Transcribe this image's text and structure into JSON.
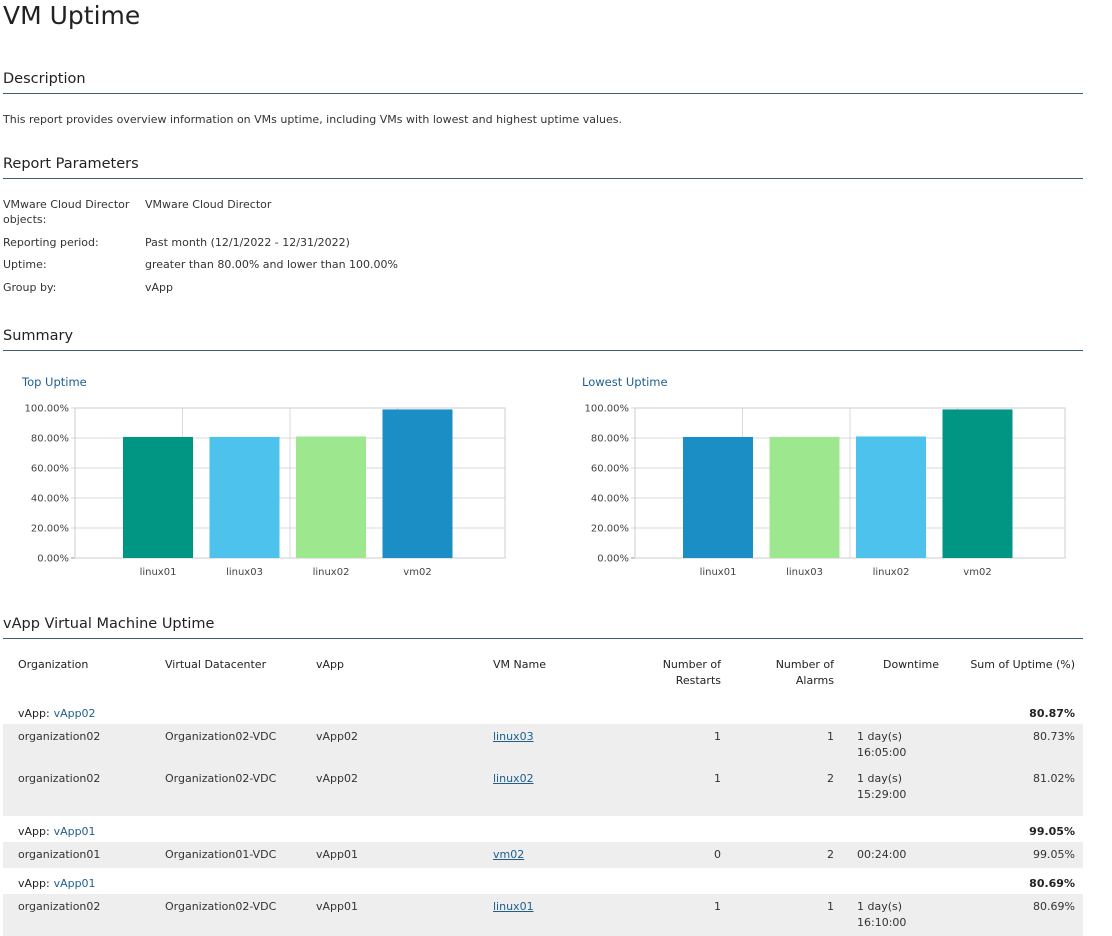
{
  "title": "VM Uptime",
  "description": {
    "heading": "Description",
    "text": "This report provides overview information on VMs uptime, including VMs with lowest and highest uptime values."
  },
  "parameters": {
    "heading": "Report Parameters",
    "items": [
      {
        "label": "VMware Cloud Director objects:",
        "value": "VMware Cloud Director"
      },
      {
        "label": "Reporting period:",
        "value": "Past month (12/1/2022 - 12/31/2022)"
      },
      {
        "label": "Uptime:",
        "value": "greater than 80.00% and lower than 100.00%"
      },
      {
        "label": "Group by:",
        "value": "vApp"
      }
    ]
  },
  "summary": {
    "heading": "Summary"
  },
  "chart_data": [
    {
      "type": "bar",
      "title": "Top Uptime",
      "categories": [
        "linux01",
        "linux03",
        "linux02",
        "vm02"
      ],
      "values": [
        80.69,
        80.73,
        81.02,
        99.05
      ],
      "colors": [
        "#009683",
        "#4dc2ec",
        "#9de88f",
        "#1b8ec5"
      ],
      "yticks": [
        "0.00%",
        "20.00%",
        "40.00%",
        "60.00%",
        "80.00%",
        "100.00%"
      ],
      "ylim": [
        0,
        100
      ],
      "grid": true
    },
    {
      "type": "bar",
      "title": "Lowest Uptime",
      "categories": [
        "linux01",
        "linux03",
        "linux02",
        "vm02"
      ],
      "values": [
        80.69,
        80.73,
        81.02,
        99.05
      ],
      "colors": [
        "#1b8ec5",
        "#9de88f",
        "#4dc2ec",
        "#009683"
      ],
      "yticks": [
        "0.00%",
        "20.00%",
        "40.00%",
        "60.00%",
        "80.00%",
        "100.00%"
      ],
      "ylim": [
        0,
        100
      ],
      "grid": true
    }
  ],
  "vapp_table": {
    "heading": "vApp Virtual Machine Uptime",
    "columns": [
      "Organization",
      "Virtual Datacenter",
      "vApp",
      "VM Name",
      "Number of Restarts",
      "Number of Alarms",
      "Downtime",
      "Sum of Uptime (%)"
    ],
    "group_key": "vApp:",
    "groups": [
      {
        "name": "vApp02",
        "sum": "80.87%",
        "rows": [
          {
            "org": "organization02",
            "vdc": "Organization02-VDC",
            "vapp": "vApp02",
            "vm": "linux03",
            "restarts": "1",
            "alarms": "1",
            "downtime": "1 day(s) 16:05:00",
            "uptime": "80.73%"
          },
          {
            "org": "organization02",
            "vdc": "Organization02-VDC",
            "vapp": "vApp02",
            "vm": "linux02",
            "restarts": "1",
            "alarms": "2",
            "downtime": "1 day(s) 15:29:00",
            "uptime": "81.02%"
          }
        ]
      },
      {
        "name": "vApp01",
        "sum": "99.05%",
        "rows": [
          {
            "org": "organization01",
            "vdc": "Organization01-VDC",
            "vapp": "vApp01",
            "vm": "vm02",
            "restarts": "0",
            "alarms": "2",
            "downtime": "00:24:00",
            "uptime": "99.05%"
          }
        ]
      },
      {
        "name": "vApp01",
        "sum": "80.69%",
        "rows": [
          {
            "org": "organization02",
            "vdc": "Organization02-VDC",
            "vapp": "vApp01",
            "vm": "linux01",
            "restarts": "1",
            "alarms": "1",
            "downtime": "1 day(s) 16:10:00",
            "uptime": "80.69%"
          }
        ]
      }
    ]
  }
}
